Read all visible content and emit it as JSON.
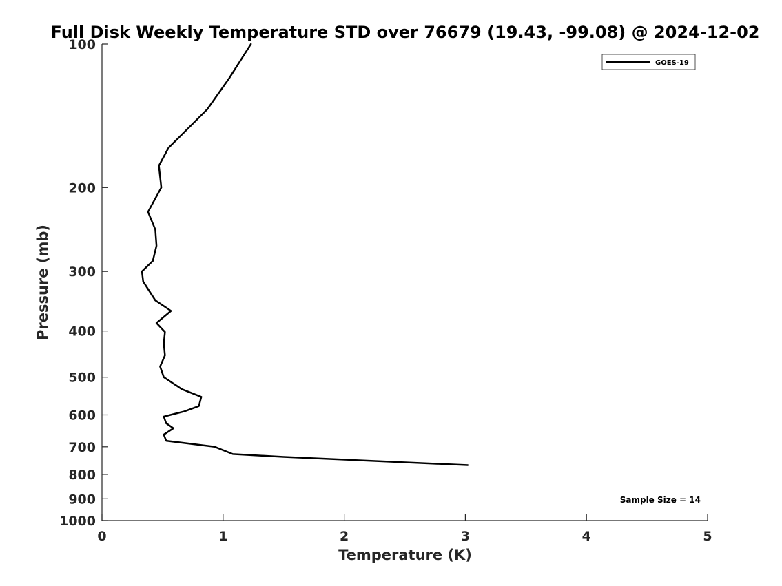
{
  "chart_data": {
    "type": "line",
    "title": "Full Disk Weekly Temperature STD over 76679 (19.43, -99.08) @ 2024-12-02",
    "xlabel": "Temperature (K)",
    "ylabel": "Pressure (mb)",
    "xlim": [
      0,
      5
    ],
    "ylim": [
      100,
      1000
    ],
    "y_scale": "log",
    "y_reversed": true,
    "x_ticks": [
      0,
      1,
      2,
      3,
      4,
      5
    ],
    "y_ticks": [
      100,
      200,
      300,
      400,
      500,
      600,
      700,
      800,
      900,
      1000
    ],
    "grid": false,
    "legend": {
      "location": "top-right",
      "entries": [
        "GOES-19"
      ]
    },
    "annotation": "Sample Size = 14",
    "series": [
      {
        "name": "GOES-19",
        "color": "#000000",
        "points": [
          [
            1.23,
            100
          ],
          [
            1.05,
            118
          ],
          [
            0.87,
            137
          ],
          [
            0.55,
            165
          ],
          [
            0.47,
            180
          ],
          [
            0.49,
            200
          ],
          [
            0.38,
            225
          ],
          [
            0.44,
            245
          ],
          [
            0.45,
            265
          ],
          [
            0.42,
            285
          ],
          [
            0.33,
            300
          ],
          [
            0.34,
            315
          ],
          [
            0.44,
            345
          ],
          [
            0.57,
            363
          ],
          [
            0.45,
            385
          ],
          [
            0.52,
            402
          ],
          [
            0.51,
            425
          ],
          [
            0.52,
            450
          ],
          [
            0.48,
            475
          ],
          [
            0.51,
            500
          ],
          [
            0.66,
            530
          ],
          [
            0.82,
            550
          ],
          [
            0.8,
            575
          ],
          [
            0.68,
            590
          ],
          [
            0.51,
            605
          ],
          [
            0.53,
            625
          ],
          [
            0.59,
            640
          ],
          [
            0.51,
            660
          ],
          [
            0.53,
            680
          ],
          [
            0.93,
            700
          ],
          [
            1.08,
            725
          ],
          [
            1.5,
            735
          ],
          [
            3.02,
            765
          ]
        ]
      }
    ]
  }
}
